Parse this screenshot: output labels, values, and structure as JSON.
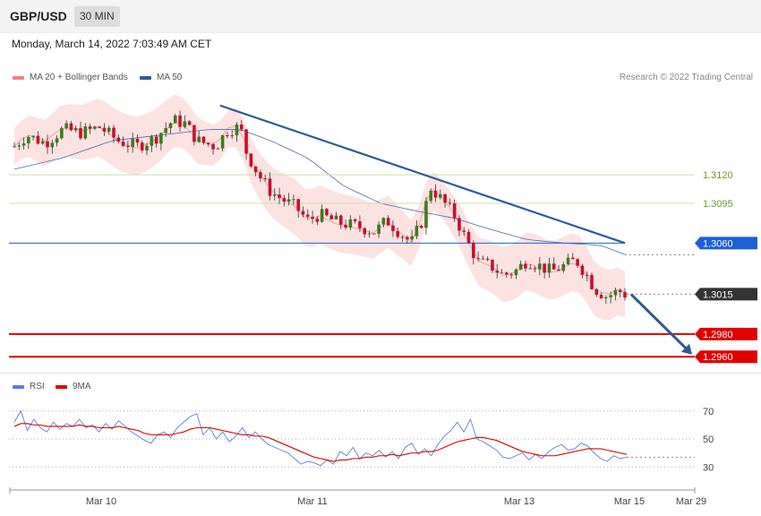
{
  "header": {
    "pair": "GBP/USD",
    "timeframe": "30 MIN"
  },
  "date": "Monday, March 14, 2022 7:03:49 AM CET",
  "research": "Research © 2022 Trading Central",
  "colors": {
    "bollinger": "#f08080",
    "ma50": "#2d5b96",
    "rsi": "#5b7fd6",
    "rsi9ma": "#e00000",
    "bull": "#3a7d1e",
    "bear": "#c8102e",
    "resist": "#1f5fd6",
    "support": "#e00000",
    "level_green": "#8dbf4a"
  },
  "chart_data": [
    {
      "type": "candlestick",
      "legend": [
        {
          "name": "MA 20 + Bollinger Bands",
          "color": "#f08080"
        },
        {
          "name": "MA 50",
          "color": "#2d5b96"
        }
      ],
      "levels": [
        {
          "label": "1.3120",
          "value": 1.312,
          "kind": "green"
        },
        {
          "label": "1.3095",
          "value": 1.3095,
          "kind": "green"
        },
        {
          "label": "1.3060",
          "value": 1.306,
          "kind": "resistance"
        },
        {
          "label": "1.3015",
          "value": 1.3015,
          "kind": "last"
        },
        {
          "label": "1.2980",
          "value": 1.298,
          "kind": "support"
        },
        {
          "label": "1.2960",
          "value": 1.296,
          "kind": "support"
        }
      ],
      "ylim": [
        1.2946,
        1.3195
      ],
      "trendline": {
        "from": [
          0.337,
          1.3181
        ],
        "to": [
          1.0,
          1.306
        ]
      },
      "close_path": [
        [
          0.0,
          1.3145
        ],
        [
          0.02,
          1.3155
        ],
        [
          0.05,
          1.3148
        ],
        [
          0.08,
          1.316
        ],
        [
          0.11,
          1.3157
        ],
        [
          0.14,
          1.3162
        ],
        [
          0.17,
          1.315
        ],
        [
          0.2,
          1.3145
        ],
        [
          0.23,
          1.3152
        ],
        [
          0.26,
          1.3168
        ],
        [
          0.28,
          1.3165
        ],
        [
          0.3,
          1.315
        ],
        [
          0.33,
          1.3145
        ],
        [
          0.35,
          1.316
        ],
        [
          0.37,
          1.3162
        ],
        [
          0.38,
          1.314
        ],
        [
          0.4,
          1.312
        ],
        [
          0.42,
          1.3105
        ],
        [
          0.44,
          1.3098
        ],
        [
          0.46,
          1.3092
        ],
        [
          0.48,
          1.308
        ],
        [
          0.5,
          1.3085
        ],
        [
          0.53,
          1.3078
        ],
        [
          0.56,
          1.3075
        ],
        [
          0.59,
          1.307
        ],
        [
          0.61,
          1.308
        ],
        [
          0.63,
          1.307
        ],
        [
          0.65,
          1.306
        ],
        [
          0.67,
          1.3082
        ],
        [
          0.68,
          1.311
        ],
        [
          0.7,
          1.3098
        ],
        [
          0.72,
          1.3085
        ],
        [
          0.74,
          1.3063
        ],
        [
          0.76,
          1.3043
        ],
        [
          0.78,
          1.304
        ],
        [
          0.8,
          1.3032
        ],
        [
          0.82,
          1.3035
        ],
        [
          0.84,
          1.3045
        ],
        [
          0.86,
          1.304
        ],
        [
          0.88,
          1.3035
        ],
        [
          0.9,
          1.304
        ],
        [
          0.92,
          1.3045
        ],
        [
          0.94,
          1.303
        ],
        [
          0.95,
          1.302
        ],
        [
          0.97,
          1.3013
        ],
        [
          0.99,
          1.3018
        ],
        [
          1.0,
          1.3015
        ]
      ],
      "bb_width": 0.002,
      "ma50_path": [
        [
          0.0,
          1.3125
        ],
        [
          0.08,
          1.3135
        ],
        [
          0.16,
          1.315
        ],
        [
          0.24,
          1.3155
        ],
        [
          0.32,
          1.316
        ],
        [
          0.37,
          1.316
        ],
        [
          0.42,
          1.315
        ],
        [
          0.48,
          1.3135
        ],
        [
          0.54,
          1.311
        ],
        [
          0.6,
          1.3095
        ],
        [
          0.66,
          1.3088
        ],
        [
          0.72,
          1.3082
        ],
        [
          0.78,
          1.3072
        ],
        [
          0.84,
          1.3063
        ],
        [
          0.9,
          1.306
        ],
        [
          0.96,
          1.3058
        ],
        [
          1.0,
          1.305
        ]
      ],
      "projection": {
        "from": [
          1.01,
          1.3015
        ],
        "to": [
          1.11,
          1.2962
        ]
      }
    },
    {
      "type": "line",
      "legend": [
        {
          "name": "RSI",
          "color": "#5b7fd6"
        },
        {
          "name": "9MA",
          "color": "#e00000"
        }
      ],
      "levels": [
        70,
        50,
        30
      ],
      "ylim": [
        18,
        82
      ],
      "rsi": [
        62,
        70,
        56,
        64,
        58,
        55,
        62,
        57,
        61,
        59,
        64,
        58,
        60,
        55,
        61,
        57,
        63,
        59,
        55,
        52,
        49,
        47,
        53,
        55,
        51,
        58,
        62,
        66,
        68,
        53,
        58,
        50,
        55,
        48,
        52,
        58,
        51,
        55,
        50,
        46,
        44,
        42,
        40,
        36,
        32,
        34,
        33,
        31,
        35,
        32,
        41,
        38,
        44,
        36,
        40,
        38,
        42,
        37,
        41,
        36,
        44,
        47,
        39,
        43,
        38,
        46,
        52,
        56,
        62,
        55,
        64,
        50,
        48,
        45,
        42,
        37,
        36,
        38,
        40,
        35,
        39,
        36,
        41,
        44,
        46,
        42,
        43,
        47,
        45,
        40,
        36,
        34,
        38,
        36,
        37
      ],
      "ma": [
        59,
        61,
        61,
        60,
        60,
        59,
        59,
        59,
        59,
        59,
        60,
        59,
        59,
        58,
        58,
        58,
        59,
        58,
        57,
        56,
        54,
        53,
        53,
        53,
        53,
        54,
        55,
        57,
        58,
        58,
        58,
        57,
        56,
        55,
        54,
        53,
        53,
        52,
        52,
        51,
        49,
        47,
        45,
        43,
        41,
        39,
        37,
        36,
        35,
        34,
        35,
        35,
        36,
        36,
        37,
        37,
        38,
        38,
        39,
        38,
        39,
        40,
        40,
        41,
        41,
        42,
        44,
        46,
        48,
        49,
        50,
        51,
        51,
        50,
        49,
        47,
        45,
        43,
        41,
        40,
        39,
        38,
        38,
        38,
        39,
        40,
        41,
        42,
        43,
        43,
        43,
        42,
        41,
        40,
        39
      ]
    }
  ],
  "xaxis": {
    "ticks": [
      "Mar 10",
      "Mar 11",
      "Mar 13",
      "Mar 15",
      "Mar 29"
    ]
  }
}
